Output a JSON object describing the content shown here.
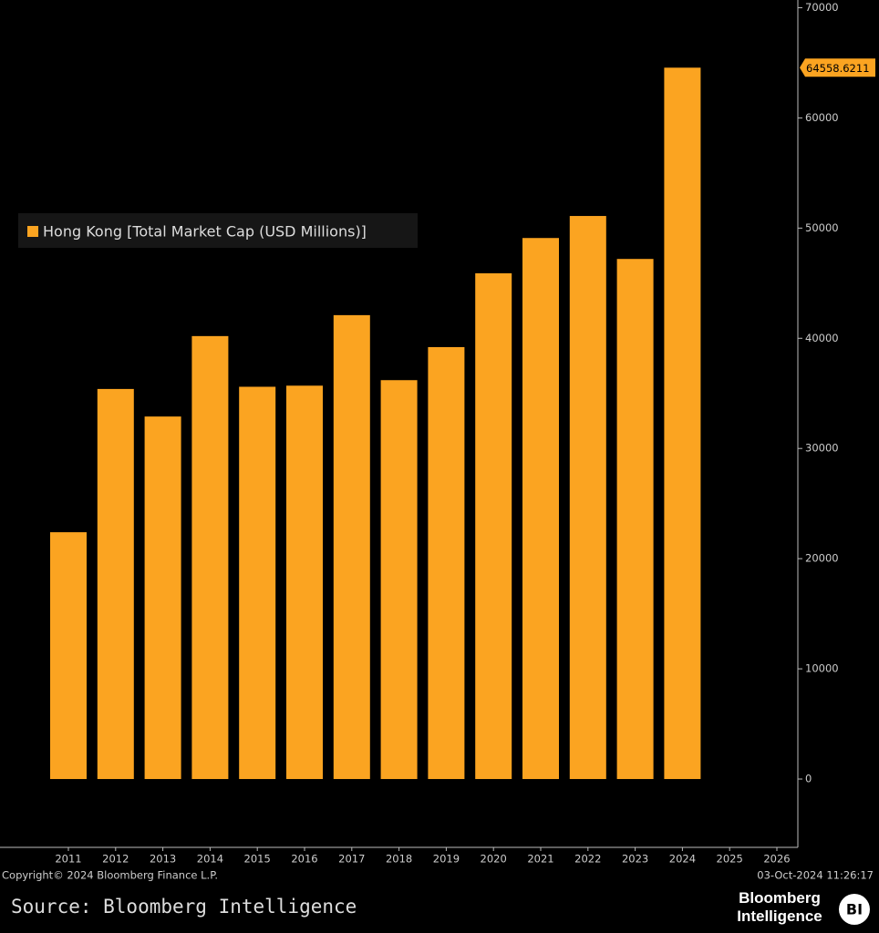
{
  "chart_data": {
    "type": "bar",
    "categories": [
      "2011",
      "2012",
      "2013",
      "2014",
      "2015",
      "2016",
      "2017",
      "2018",
      "2019",
      "2020",
      "2021",
      "2022",
      "2023",
      "2024",
      "2025",
      "2026"
    ],
    "series": [
      {
        "name": "Hong Kong [Total Market Cap (USD Millions)]",
        "color": "#fba421",
        "values": [
          22400,
          35400,
          32900,
          40200,
          35600,
          35700,
          42100,
          36200,
          39200,
          45900,
          49100,
          51100,
          47200,
          64558.6211,
          null,
          null
        ]
      }
    ],
    "ylim": [
      -6200,
      70700
    ],
    "yticks": [
      0,
      10000,
      20000,
      30000,
      40000,
      50000,
      60000,
      70000
    ],
    "legend": "top-left",
    "grid": false
  },
  "footer": {
    "copyright": "Copyright© 2024 Bloomberg Finance L.P.",
    "timestamp": "03-Oct-2024 11:26:17",
    "source": "Source: Bloomberg Intelligence",
    "logo_text": "Bloomberg Intelligence",
    "logo_badge": "BI"
  }
}
